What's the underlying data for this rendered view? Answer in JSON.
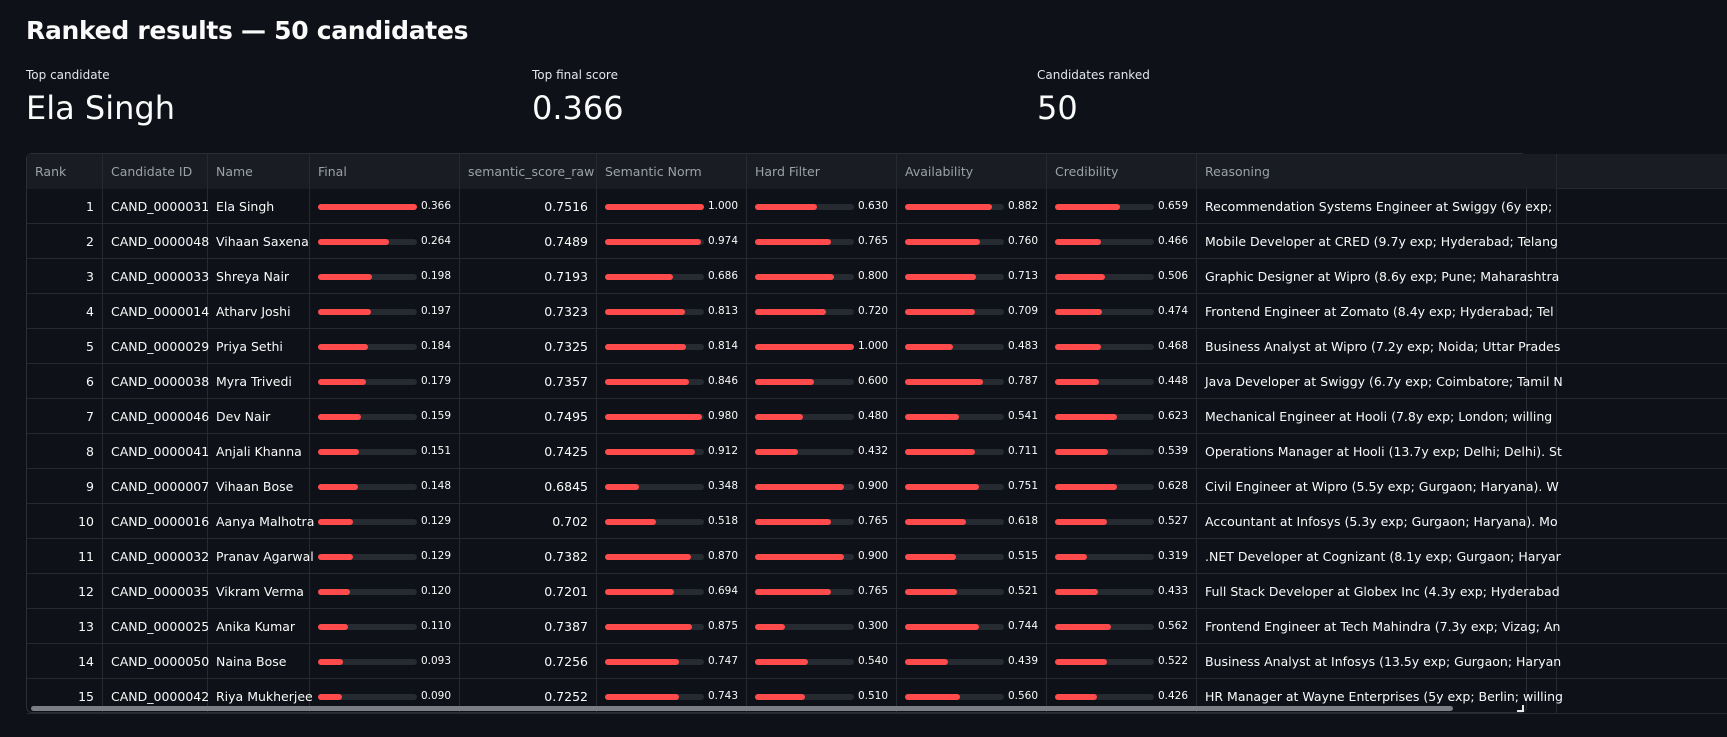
{
  "title": "Ranked results — 50 candidates",
  "metrics": [
    {
      "label": "Top candidate",
      "value": "Ela Singh"
    },
    {
      "label": "Top final score",
      "value": "0.366"
    },
    {
      "label": "Candidates ranked",
      "value": "50"
    }
  ],
  "table": {
    "columns": [
      "Rank",
      "Candidate ID",
      "Name",
      "Final",
      "semantic_score_raw",
      "Semantic  Norm",
      "Hard Filter",
      "Availability",
      "Credibility",
      "Reasoning"
    ],
    "bar_color": "#ff4b4b",
    "rows": [
      {
        "rank": "1",
        "id": "CAND_0000031",
        "name": "Ela Singh",
        "final": "0.366",
        "raw": "0.7516",
        "sem": "1.000",
        "hard": "0.630",
        "avail": "0.882",
        "cred": "0.659",
        "reason": "Recommendation Systems Engineer at Swiggy (6y exp; "
      },
      {
        "rank": "2",
        "id": "CAND_0000048",
        "name": "Vihaan Saxena",
        "final": "0.264",
        "raw": "0.7489",
        "sem": "0.974",
        "hard": "0.765",
        "avail": "0.760",
        "cred": "0.466",
        "reason": "Mobile Developer at CRED (9.7y exp; Hyderabad; Telang"
      },
      {
        "rank": "3",
        "id": "CAND_0000033",
        "name": "Shreya Nair",
        "final": "0.198",
        "raw": "0.7193",
        "sem": "0.686",
        "hard": "0.800",
        "avail": "0.713",
        "cred": "0.506",
        "reason": "Graphic Designer at Wipro (8.6y exp; Pune; Maharashtra"
      },
      {
        "rank": "4",
        "id": "CAND_0000014",
        "name": "Atharv Joshi",
        "final": "0.197",
        "raw": "0.7323",
        "sem": "0.813",
        "hard": "0.720",
        "avail": "0.709",
        "cred": "0.474",
        "reason": "Frontend Engineer at Zomato (8.4y exp; Hyderabad; Tel"
      },
      {
        "rank": "5",
        "id": "CAND_0000029",
        "name": "Priya Sethi",
        "final": "0.184",
        "raw": "0.7325",
        "sem": "0.814",
        "hard": "1.000",
        "avail": "0.483",
        "cred": "0.468",
        "reason": "Business Analyst at Wipro (7.2y exp; Noida; Uttar Prades"
      },
      {
        "rank": "6",
        "id": "CAND_0000038",
        "name": "Myra Trivedi",
        "final": "0.179",
        "raw": "0.7357",
        "sem": "0.846",
        "hard": "0.600",
        "avail": "0.787",
        "cred": "0.448",
        "reason": "Java Developer at Swiggy (6.7y exp; Coimbatore; Tamil N"
      },
      {
        "rank": "7",
        "id": "CAND_0000046",
        "name": "Dev Nair",
        "final": "0.159",
        "raw": "0.7495",
        "sem": "0.980",
        "hard": "0.480",
        "avail": "0.541",
        "cred": "0.623",
        "reason": "Mechanical Engineer at Hooli (7.8y exp; London; willing"
      },
      {
        "rank": "8",
        "id": "CAND_0000041",
        "name": "Anjali Khanna",
        "final": "0.151",
        "raw": "0.7425",
        "sem": "0.912",
        "hard": "0.432",
        "avail": "0.711",
        "cred": "0.539",
        "reason": "Operations Manager at Hooli (13.7y exp; Delhi; Delhi). St"
      },
      {
        "rank": "9",
        "id": "CAND_0000007",
        "name": "Vihaan Bose",
        "final": "0.148",
        "raw": "0.6845",
        "sem": "0.348",
        "hard": "0.900",
        "avail": "0.751",
        "cred": "0.628",
        "reason": "Civil Engineer at Wipro (5.5y exp; Gurgaon; Haryana). W"
      },
      {
        "rank": "10",
        "id": "CAND_0000016",
        "name": "Aanya Malhotra",
        "final": "0.129",
        "raw": "0.702",
        "sem": "0.518",
        "hard": "0.765",
        "avail": "0.618",
        "cred": "0.527",
        "reason": "Accountant at Infosys (5.3y exp; Gurgaon; Haryana). Mo"
      },
      {
        "rank": "11",
        "id": "CAND_0000032",
        "name": "Pranav Agarwal",
        "final": "0.129",
        "raw": "0.7382",
        "sem": "0.870",
        "hard": "0.900",
        "avail": "0.515",
        "cred": "0.319",
        "reason": ".NET Developer at Cognizant (8.1y exp; Gurgaon; Haryar"
      },
      {
        "rank": "12",
        "id": "CAND_0000035",
        "name": "Vikram Verma",
        "final": "0.120",
        "raw": "0.7201",
        "sem": "0.694",
        "hard": "0.765",
        "avail": "0.521",
        "cred": "0.433",
        "reason": "Full Stack Developer at Globex Inc (4.3y exp; Hyderabad"
      },
      {
        "rank": "13",
        "id": "CAND_0000025",
        "name": "Anika Kumar",
        "final": "0.110",
        "raw": "0.7387",
        "sem": "0.875",
        "hard": "0.300",
        "avail": "0.744",
        "cred": "0.562",
        "reason": "Frontend Engineer at Tech Mahindra (7.3y exp; Vizag; An"
      },
      {
        "rank": "14",
        "id": "CAND_0000050",
        "name": "Naina Bose",
        "final": "0.093",
        "raw": "0.7256",
        "sem": "0.747",
        "hard": "0.540",
        "avail": "0.439",
        "cred": "0.522",
        "reason": "Business Analyst at Infosys (13.5y exp; Gurgaon; Haryan"
      },
      {
        "rank": "15",
        "id": "CAND_0000042",
        "name": "Riya Mukherjee",
        "final": "0.090",
        "raw": "0.7252",
        "sem": "0.743",
        "hard": "0.510",
        "avail": "0.560",
        "cred": "0.426",
        "reason": "HR Manager at Wayne Enterprises (5y exp; Berlin; willing"
      }
    ]
  }
}
